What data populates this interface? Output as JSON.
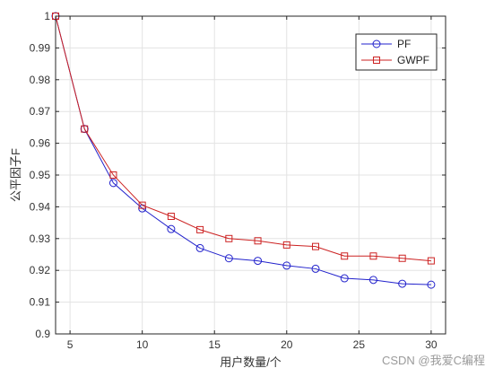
{
  "chart_data": {
    "type": "line",
    "title": "",
    "xlabel": "用户数量/个",
    "ylabel": "公平因子F",
    "xlim": [
      4,
      31
    ],
    "ylim": [
      0.9,
      1.0
    ],
    "xticks": [
      5,
      10,
      15,
      20,
      25,
      30
    ],
    "yticks": [
      0.9,
      0.91,
      0.92,
      0.93,
      0.94,
      0.95,
      0.96,
      0.97,
      0.98,
      0.99,
      1.0
    ],
    "xtick_labels": [
      "5",
      "10",
      "15",
      "20",
      "25",
      "30"
    ],
    "ytick_labels": [
      "0.9",
      "0.91",
      "0.92",
      "0.93",
      "0.94",
      "0.95",
      "0.96",
      "0.97",
      "0.98",
      "0.99",
      "1"
    ],
    "grid": true,
    "legend_position": "top-right",
    "x": [
      4,
      6,
      8,
      10,
      12,
      14,
      16,
      18,
      20,
      22,
      24,
      26,
      28,
      30
    ],
    "series": [
      {
        "name": "PF",
        "color": "#2222cc",
        "marker": "circle",
        "values": [
          1.0,
          0.9645,
          0.9475,
          0.9395,
          0.933,
          0.927,
          0.9238,
          0.923,
          0.9215,
          0.9205,
          0.9175,
          0.917,
          0.9158,
          0.9155
        ]
      },
      {
        "name": "GWPF",
        "color": "#cc2222",
        "marker": "square",
        "values": [
          1.0,
          0.9645,
          0.95,
          0.9405,
          0.937,
          0.9328,
          0.93,
          0.9293,
          0.928,
          0.9275,
          0.9245,
          0.9245,
          0.9238,
          0.923
        ]
      }
    ]
  },
  "watermark": "CSDN @我爱C编程"
}
